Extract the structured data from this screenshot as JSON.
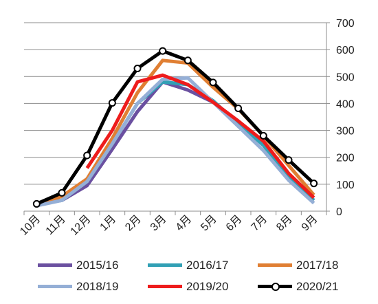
{
  "chart_data": {
    "type": "line",
    "categories": [
      "10月",
      "11月",
      "12月",
      "1月",
      "2月",
      "3月",
      "4月",
      "5月",
      "6月",
      "7月",
      "8月",
      "9月"
    ],
    "ylim": [
      0,
      700
    ],
    "yticks": [
      0,
      100,
      200,
      300,
      400,
      500,
      600,
      700
    ],
    "y_axis_side": "right",
    "grid": true,
    "legend_position": "bottom",
    "series": [
      {
        "name": "2015/16",
        "color": "#6B50A0",
        "marker": "none",
        "values": [
          25,
          40,
          95,
          230,
          370,
          480,
          450,
          405,
          330,
          245,
          130,
          40
        ]
      },
      {
        "name": "2016/17",
        "color": "#31A0B5",
        "marker": "none",
        "values": [
          25,
          40,
          110,
          250,
          400,
          480,
          470,
          410,
          325,
          245,
          125,
          40
        ]
      },
      {
        "name": "2017/18",
        "color": "#E07F33",
        "marker": "none",
        "values": [
          25,
          55,
          120,
          270,
          440,
          560,
          550,
          460,
          380,
          280,
          170,
          60
        ]
      },
      {
        "name": "2018/19",
        "color": "#95AFD6",
        "marker": "none",
        "values": [
          20,
          40,
          110,
          250,
          400,
          490,
          495,
          405,
          315,
          225,
          115,
          30
        ]
      },
      {
        "name": "2019/20",
        "color": "#EE1C1C",
        "marker": "none",
        "values": [
          null,
          null,
          160,
          300,
          480,
          505,
          470,
          405,
          335,
          260,
          140,
          50
        ]
      },
      {
        "name": "2020/21",
        "color": "#000000",
        "marker": "circle",
        "values": [
          27,
          68,
          207,
          402,
          530,
          595,
          560,
          478,
          382,
          280,
          190,
          103
        ]
      }
    ]
  }
}
